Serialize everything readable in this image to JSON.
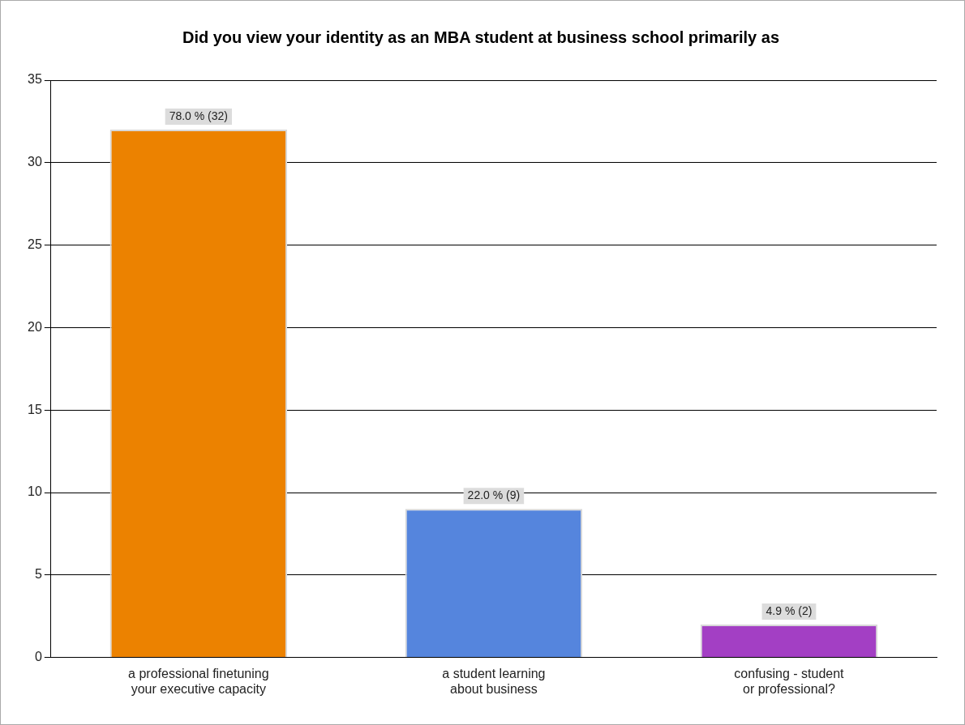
{
  "chart_data": {
    "type": "bar",
    "title": "Did you view your identity as an MBA student at business school primarily as",
    "categories": [
      "a professional finetuning\nyour executive capacity",
      "a student learning\nabout business",
      "confusing - student\nor professional?"
    ],
    "values": [
      32,
      9,
      2
    ],
    "colors": [
      "#ec8200",
      "#5585dd",
      "#a33fc4"
    ],
    "value_labels": [
      "78.0 % (32)",
      "22.0 % (9)",
      "4.9 % (2)"
    ],
    "ylim": [
      0,
      35
    ],
    "yticks": [
      0,
      5,
      10,
      15,
      20,
      25,
      30,
      35
    ],
    "grid": "y",
    "legend": false
  }
}
